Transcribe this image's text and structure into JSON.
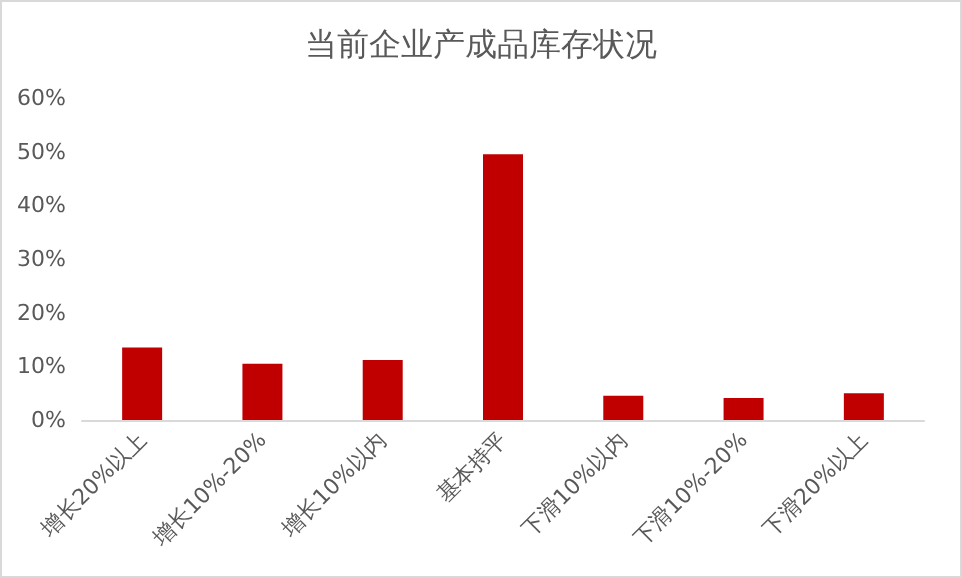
{
  "chart_data": {
    "type": "bar",
    "title": "当前企业产成品库存状况",
    "categories": [
      "增长20%以上",
      "增长10%-20%",
      "增长10%以内",
      "基本持平",
      "下滑10%以内",
      "下滑10%-20%",
      "下滑20%以上"
    ],
    "values": [
      13.5,
      10.5,
      11.2,
      49.5,
      4.5,
      4.1,
      5.0
    ],
    "color": "#c00000",
    "ylim": [
      0,
      60
    ],
    "yticks": [
      {
        "value": 0,
        "label": "0%"
      },
      {
        "value": 10,
        "label": "10%"
      },
      {
        "value": 20,
        "label": "20%"
      },
      {
        "value": 30,
        "label": "30%"
      },
      {
        "value": 40,
        "label": "40%"
      },
      {
        "value": 50,
        "label": "50%"
      },
      {
        "value": 60,
        "label": "60%"
      }
    ],
    "grid": false
  }
}
